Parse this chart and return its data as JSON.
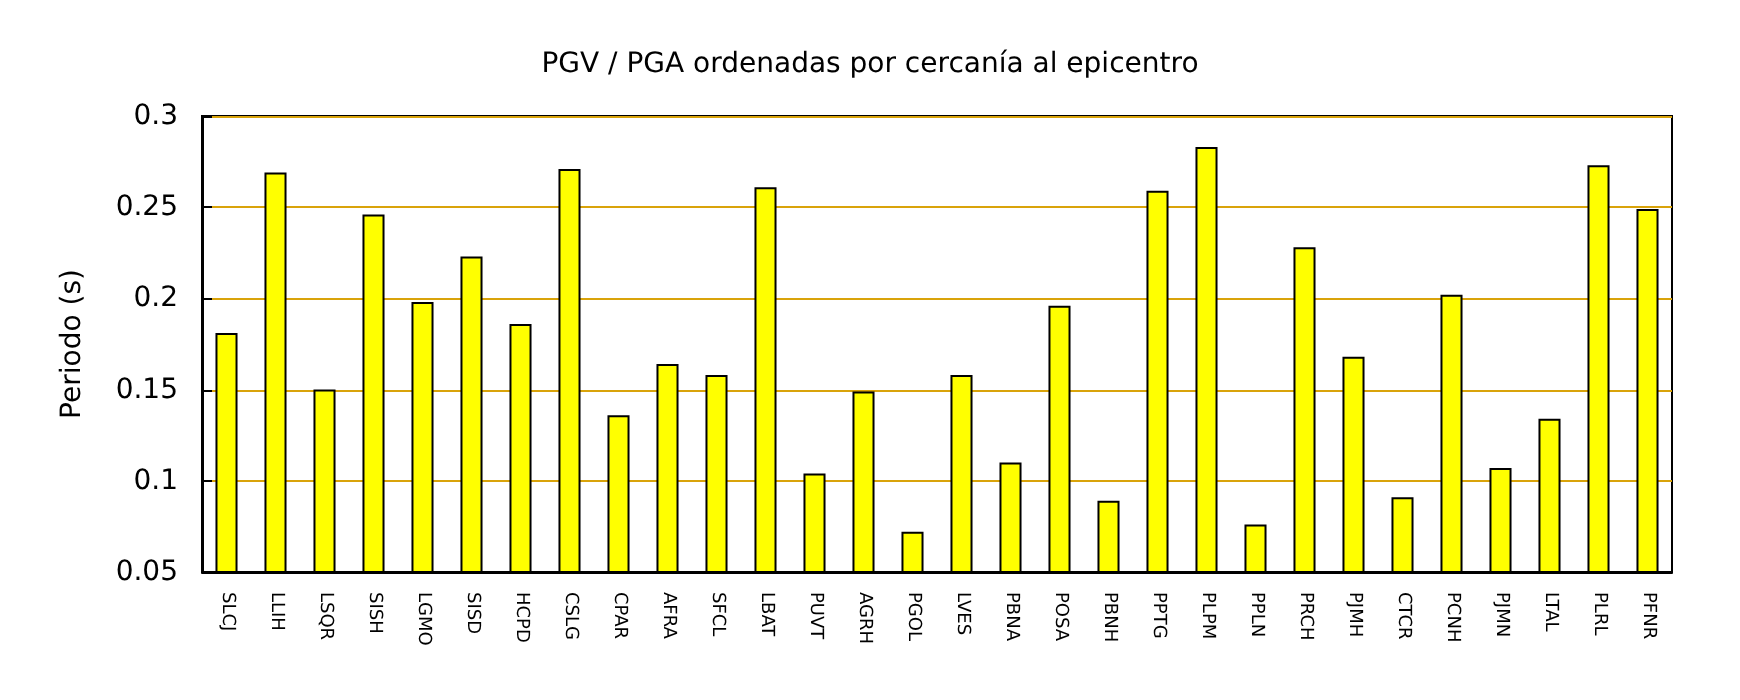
{
  "chart_data": {
    "type": "bar",
    "title": "PGV / PGA ordenadas por cercanía al epicentro",
    "ylabel": "Periodo (s)",
    "categories": [
      "SLCJ",
      "LLIH",
      "LSQR",
      "SISH",
      "LGMO",
      "SISD",
      "HCPD",
      "CSLG",
      "CPAR",
      "AFRA",
      "SFCL",
      "LBAT",
      "PUVT",
      "AGRH",
      "PGOL",
      "LVES",
      "PBNA",
      "POSA",
      "PBNH",
      "PPTG",
      "PLPM",
      "PPLN",
      "PRCH",
      "PJMH",
      "CTCR",
      "PCNH",
      "PJMN",
      "LTAL",
      "PLRL",
      "PFNR"
    ],
    "values": [
      0.181,
      0.269,
      0.15,
      0.246,
      0.198,
      0.223,
      0.186,
      0.271,
      0.136,
      0.164,
      0.158,
      0.261,
      0.104,
      0.149,
      0.072,
      0.158,
      0.11,
      0.196,
      0.089,
      0.259,
      0.283,
      0.076,
      0.228,
      0.168,
      0.091,
      0.202,
      0.107,
      0.134,
      0.273,
      0.249
    ],
    "color": "#ffff00",
    "ylim": [
      0.05,
      0.3
    ],
    "yticks": [
      0.05,
      0.1,
      0.15,
      0.2,
      0.25,
      0.3
    ],
    "grid": "y"
  }
}
